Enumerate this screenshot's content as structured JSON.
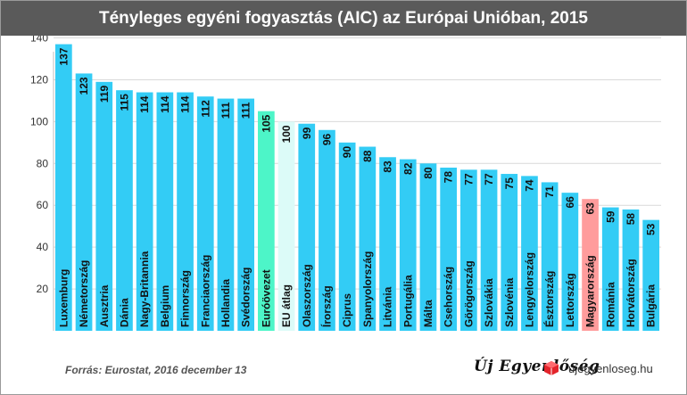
{
  "header": {
    "title": "Tényleges egyéni fogyasztás (AIC) az Európai Unióban, 2015"
  },
  "footer": {
    "source": "Forrás: Eurostat, 2016 december 13",
    "logo_text": "Új Egyenlőség",
    "site": "ujegyenloseg.hu"
  },
  "colors": {
    "default": "#33ccf5",
    "eurozone": "#4df5c8",
    "eu_avg": "#dcfbf8",
    "hungary": "#ff9c9c",
    "header_bg": "#5a5a5a",
    "logo_red": "#e3242b"
  },
  "chart_data": {
    "type": "bar",
    "title": "Tényleges egyéni fogyasztás (AIC) az Európai Unióban, 2015",
    "xlabel": "",
    "ylabel": "",
    "ylim": [
      0,
      140
    ],
    "yticks": [
      20,
      40,
      60,
      80,
      100,
      120,
      140
    ],
    "grid": true,
    "categories": [
      "Luxemburg",
      "Németország",
      "Ausztria",
      "Dánia",
      "Nagy-Britannia",
      "Belgium",
      "Finnország",
      "Franciaország",
      "Hollandia",
      "Svédország",
      "Euróövezet",
      "EU átlag",
      "Olaszország",
      "Írország",
      "Ciprus",
      "Spanyolország",
      "Litvánia",
      "Portugália",
      "Málta",
      "Csehország",
      "Görögország",
      "Szlovákia",
      "Szlovénia",
      "Lengyelország",
      "Észtország",
      "Lettország",
      "Magyarország",
      "Románia",
      "Horvátország",
      "Bulgária"
    ],
    "values": [
      137,
      123,
      119,
      115,
      114,
      114,
      114,
      112,
      111,
      111,
      105,
      100,
      99,
      96,
      90,
      88,
      83,
      82,
      80,
      78,
      77,
      77,
      75,
      74,
      71,
      66,
      63,
      59,
      58,
      53
    ],
    "highlights": {
      "Euróövezet": "eurozone",
      "EU átlag": "eu_avg",
      "Magyarország": "hungary"
    }
  }
}
